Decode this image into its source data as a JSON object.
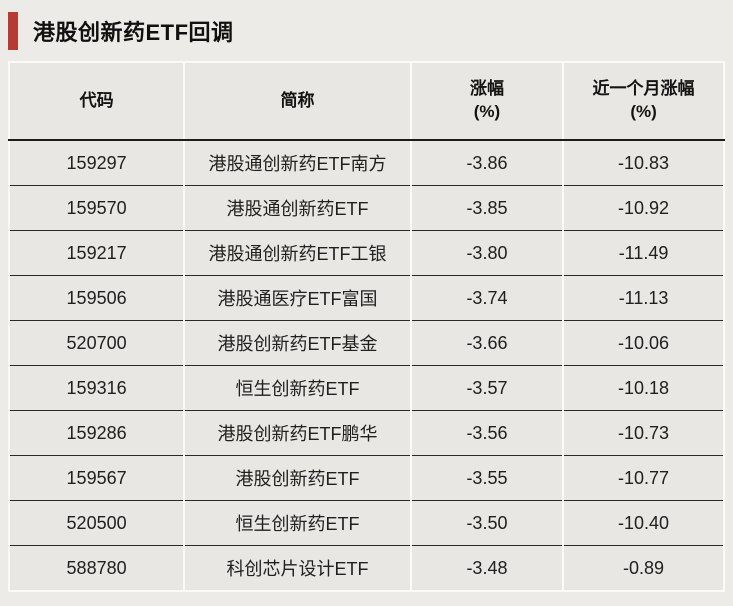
{
  "title": "港股创新药ETF回调",
  "accent_color": "#b63b33",
  "table": {
    "headers": [
      {
        "label": "代码",
        "sub": ""
      },
      {
        "label": "简称",
        "sub": ""
      },
      {
        "label": "涨幅",
        "sub": "(%)"
      },
      {
        "label": "近一个月涨幅",
        "sub": "(%)"
      }
    ],
    "rows": [
      {
        "code": "159297",
        "name": "港股通创新药ETF南方",
        "chg": "-3.86",
        "chg_1m": "-10.83"
      },
      {
        "code": "159570",
        "name": "港股通创新药ETF",
        "chg": "-3.85",
        "chg_1m": "-10.92"
      },
      {
        "code": "159217",
        "name": "港股通创新药ETF工银",
        "chg": "-3.80",
        "chg_1m": "-11.49"
      },
      {
        "code": "159506",
        "name": "港股通医疗ETF富国",
        "chg": "-3.74",
        "chg_1m": "-11.13"
      },
      {
        "code": "520700",
        "name": "港股创新药ETF基金",
        "chg": "-3.66",
        "chg_1m": "-10.06"
      },
      {
        "code": "159316",
        "name": "恒生创新药ETF",
        "chg": "-3.57",
        "chg_1m": "-10.18"
      },
      {
        "code": "159286",
        "name": "港股创新药ETF鹏华",
        "chg": "-3.56",
        "chg_1m": "-10.73"
      },
      {
        "code": "159567",
        "name": "港股创新药ETF",
        "chg": "-3.55",
        "chg_1m": "-10.77"
      },
      {
        "code": "520500",
        "name": "恒生创新药ETF",
        "chg": "-3.50",
        "chg_1m": "-10.40"
      },
      {
        "code": "588780",
        "name": "科创芯片设计ETF",
        "chg": "-3.48",
        "chg_1m": "-0.89"
      }
    ]
  },
  "chart_data": {
    "type": "table",
    "title": "港股创新药ETF回调",
    "columns": [
      "代码",
      "简称",
      "涨幅(%)",
      "近一个月涨幅(%)"
    ],
    "rows": [
      [
        "159297",
        "港股通创新药ETF南方",
        -3.86,
        -10.83
      ],
      [
        "159570",
        "港股通创新药ETF",
        -3.85,
        -10.92
      ],
      [
        "159217",
        "港股通创新药ETF工银",
        -3.8,
        -11.49
      ],
      [
        "159506",
        "港股通医疗ETF富国",
        -3.74,
        -11.13
      ],
      [
        "520700",
        "港股创新药ETF基金",
        -3.66,
        -10.06
      ],
      [
        "159316",
        "恒生创新药ETF",
        -3.57,
        -10.18
      ],
      [
        "159286",
        "港股创新药ETF鹏华",
        -3.56,
        -10.73
      ],
      [
        "159567",
        "港股创新药ETF",
        -3.55,
        -10.77
      ],
      [
        "520500",
        "恒生创新药ETF",
        -3.5,
        -10.4
      ],
      [
        "588780",
        "科创芯片设计ETF",
        -3.48,
        -0.89
      ]
    ]
  }
}
